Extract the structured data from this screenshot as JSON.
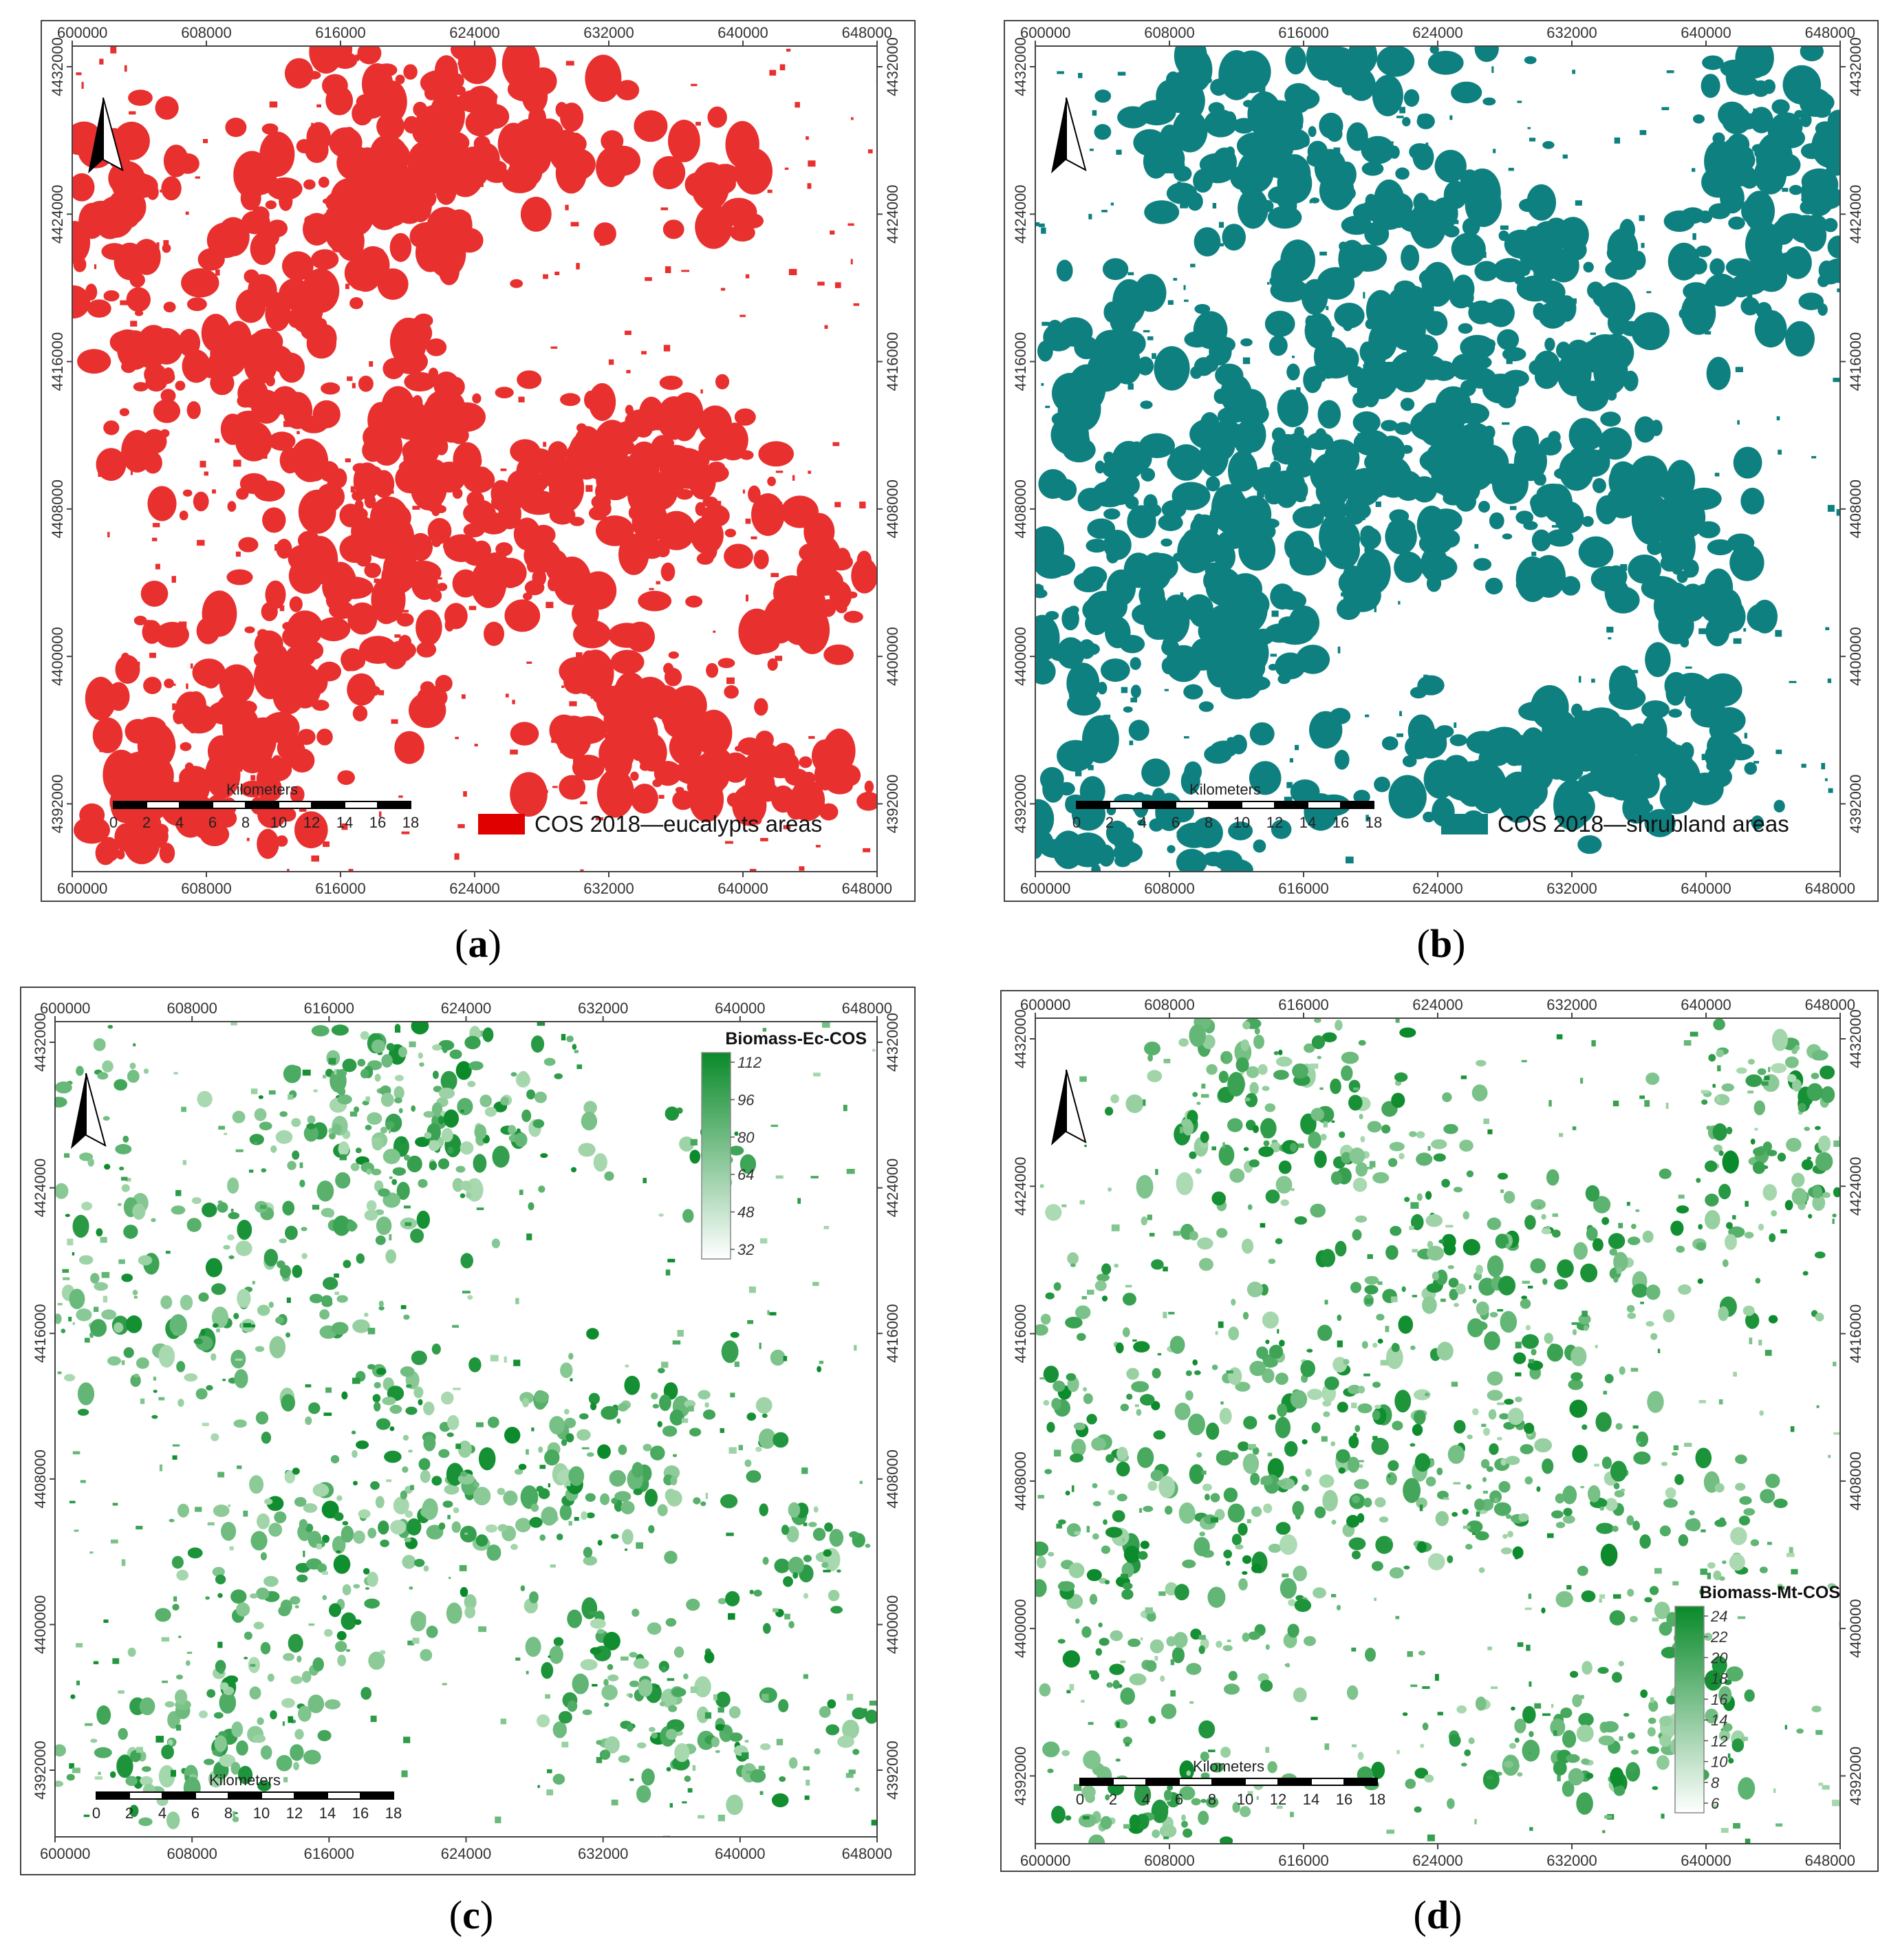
{
  "x_ticks": [
    "600000",
    "608000",
    "616000",
    "624000",
    "632000",
    "640000",
    "648000"
  ],
  "y_ticks": [
    "4432000",
    "4424000",
    "4416000",
    "4408000",
    "4400000",
    "4392000"
  ],
  "scalebar": {
    "title": "Kilometers",
    "labels": [
      "0",
      "2",
      "4",
      "6",
      "8",
      "10",
      "12",
      "14",
      "16",
      "18"
    ]
  },
  "north_arrow": "north-arrow-icon",
  "colors": {
    "eucalypts": "#e8302f",
    "shrubland": "#0f8080",
    "biomass_dark": "#0a8a2a",
    "biomass_light": "#ffffff",
    "frame": "#444444"
  },
  "panels": [
    {
      "id": "a",
      "label_open": "(",
      "label_letter": "a",
      "label_close": ")",
      "kind": "class",
      "legend": {
        "swatch_color": "#e00000",
        "text": "COS 2018—eucalypts areas"
      }
    },
    {
      "id": "b",
      "label_open": "(",
      "label_letter": "b",
      "label_close": ")",
      "kind": "class",
      "legend": {
        "swatch_color": "#0f8080",
        "text": "COS 2018—shrubland areas"
      }
    },
    {
      "id": "c",
      "label_open": "(",
      "label_letter": "c",
      "label_close": ")",
      "kind": "ramp",
      "legend": {
        "title": "Biomass-Ec-COS",
        "ticks": [
          "112",
          "96",
          "80",
          "64",
          "48",
          "32"
        ]
      }
    },
    {
      "id": "d",
      "label_open": "(",
      "label_letter": "d",
      "label_close": ")",
      "kind": "ramp",
      "legend": {
        "title": "Biomass-Mt-COS",
        "ticks": [
          "24",
          "22",
          "20",
          "18",
          "16",
          "14",
          "12",
          "10",
          "8",
          "6"
        ]
      }
    }
  ]
}
